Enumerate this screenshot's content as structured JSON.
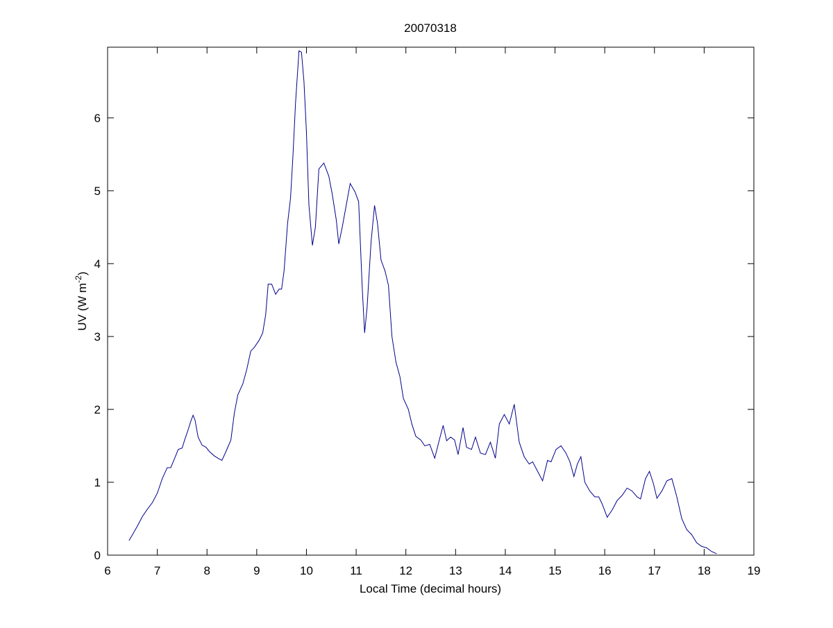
{
  "chart_data": {
    "type": "line",
    "title": "20070318",
    "xlabel": "Local Time (decimal hours)",
    "ylabel": {
      "text": "UV (W m",
      "sup": "-2",
      "end": ")"
    },
    "color": "#00008b",
    "xlim": [
      6,
      19
    ],
    "xticks": [
      6,
      7,
      8,
      9,
      10,
      11,
      12,
      13,
      14,
      15,
      16,
      17,
      18,
      19
    ],
    "ylim": [
      0,
      6.97
    ],
    "yticks": [
      0,
      1,
      2,
      3,
      4,
      5,
      6
    ],
    "x": [
      6.43,
      6.5,
      6.6,
      6.7,
      6.8,
      6.9,
      7.0,
      7.1,
      7.2,
      7.27,
      7.35,
      7.42,
      7.5,
      7.55,
      7.62,
      7.68,
      7.72,
      7.76,
      7.82,
      7.9,
      7.98,
      8.05,
      8.15,
      8.22,
      8.3,
      8.38,
      8.48,
      8.55,
      8.62,
      8.72,
      8.8,
      8.88,
      8.95,
      9.05,
      9.12,
      9.18,
      9.23,
      9.3,
      9.38,
      9.45,
      9.5,
      9.55,
      9.62,
      9.68,
      9.73,
      9.78,
      9.85,
      9.9,
      9.95,
      10.0,
      10.05,
      10.12,
      10.18,
      10.25,
      10.35,
      10.45,
      10.52,
      10.6,
      10.65,
      10.72,
      10.8,
      10.88,
      10.98,
      11.05,
      11.12,
      11.17,
      11.22,
      11.3,
      11.37,
      11.43,
      11.5,
      11.58,
      11.65,
      11.72,
      11.8,
      11.88,
      11.95,
      12.05,
      12.12,
      12.2,
      12.3,
      12.38,
      12.48,
      12.58,
      12.68,
      12.75,
      12.82,
      12.9,
      12.98,
      13.05,
      13.15,
      13.22,
      13.32,
      13.4,
      13.5,
      13.6,
      13.7,
      13.8,
      13.88,
      13.98,
      14.08,
      14.18,
      14.28,
      14.38,
      14.48,
      14.55,
      14.65,
      14.75,
      14.85,
      14.92,
      15.02,
      15.12,
      15.22,
      15.3,
      15.38,
      15.45,
      15.52,
      15.6,
      15.7,
      15.8,
      15.88,
      15.95,
      16.05,
      16.15,
      16.25,
      16.35,
      16.45,
      16.55,
      16.65,
      16.72,
      16.82,
      16.9,
      16.98,
      17.05,
      17.15,
      17.25,
      17.35,
      17.45,
      17.55,
      17.65,
      17.75,
      17.85,
      17.95,
      18.05,
      18.15,
      18.25
    ],
    "values": [
      0.2,
      0.28,
      0.4,
      0.53,
      0.63,
      0.72,
      0.85,
      1.05,
      1.2,
      1.2,
      1.33,
      1.45,
      1.47,
      1.58,
      1.72,
      1.85,
      1.92,
      1.85,
      1.62,
      1.51,
      1.48,
      1.42,
      1.36,
      1.33,
      1.3,
      1.42,
      1.58,
      1.95,
      2.2,
      2.35,
      2.55,
      2.8,
      2.85,
      2.95,
      3.05,
      3.3,
      3.72,
      3.72,
      3.58,
      3.65,
      3.65,
      3.9,
      4.55,
      4.9,
      5.5,
      6.2,
      6.92,
      6.9,
      6.5,
      5.8,
      4.8,
      4.25,
      4.5,
      5.3,
      5.38,
      5.2,
      4.95,
      4.6,
      4.27,
      4.5,
      4.8,
      5.1,
      4.98,
      4.85,
      3.7,
      3.05,
      3.4,
      4.3,
      4.8,
      4.55,
      4.05,
      3.9,
      3.7,
      3.0,
      2.65,
      2.45,
      2.15,
      2.0,
      1.8,
      1.63,
      1.58,
      1.5,
      1.52,
      1.33,
      1.6,
      1.78,
      1.57,
      1.62,
      1.58,
      1.38,
      1.75,
      1.48,
      1.45,
      1.62,
      1.4,
      1.38,
      1.55,
      1.33,
      1.8,
      1.93,
      1.8,
      2.07,
      1.55,
      1.35,
      1.25,
      1.28,
      1.15,
      1.02,
      1.3,
      1.28,
      1.45,
      1.5,
      1.4,
      1.28,
      1.08,
      1.25,
      1.35,
      1.0,
      0.88,
      0.8,
      0.8,
      0.7,
      0.52,
      0.62,
      0.75,
      0.82,
      0.92,
      0.88,
      0.8,
      0.77,
      1.05,
      1.15,
      0.98,
      0.78,
      0.88,
      1.02,
      1.05,
      0.8,
      0.5,
      0.35,
      0.28,
      0.17,
      0.12,
      0.1,
      0.05,
      0.02
    ]
  }
}
